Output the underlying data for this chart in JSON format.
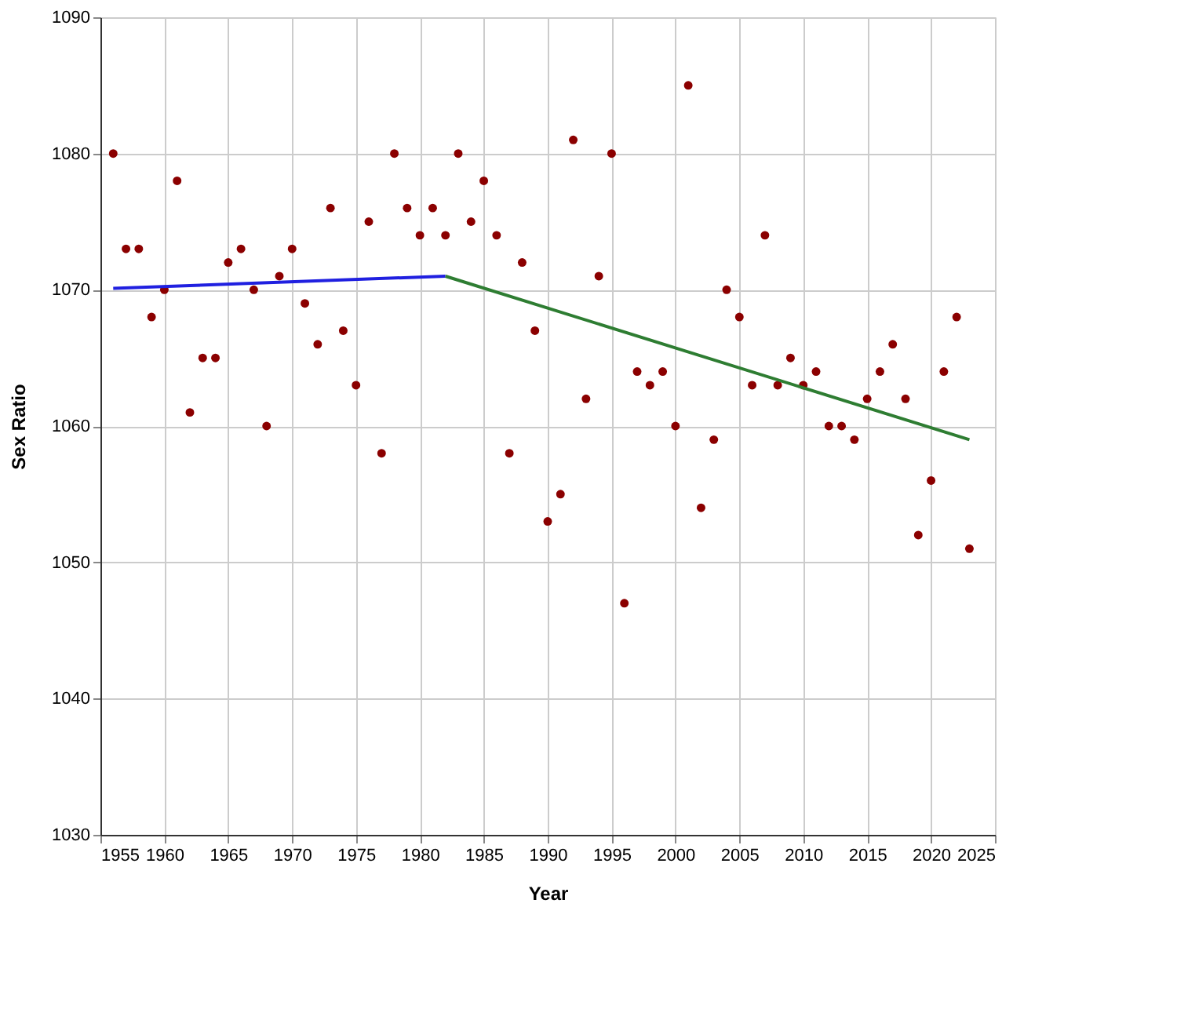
{
  "chart_data": {
    "type": "scatter",
    "xlabel": "Year",
    "ylabel": "Sex Ratio",
    "xlim": [
      1955,
      2025
    ],
    "ylim": [
      1030,
      1090
    ],
    "xticks": [
      1955,
      1960,
      1965,
      1970,
      1975,
      1980,
      1985,
      1990,
      1995,
      2000,
      2005,
      2010,
      2015,
      2020,
      2025
    ],
    "yticks": [
      1030,
      1040,
      1050,
      1060,
      1070,
      1080,
      1090
    ],
    "grid": true,
    "series": [
      {
        "marker": "circle",
        "color": "#8b0000",
        "x": [
          1956,
          1957,
          1958,
          1959,
          1960,
          1961,
          1962,
          1963,
          1964,
          1965,
          1966,
          1967,
          1968,
          1969,
          1970,
          1971,
          1972,
          1973,
          1974,
          1975,
          1976,
          1977,
          1978,
          1979,
          1980,
          1981,
          1982,
          1983,
          1984,
          1985,
          1986,
          1987,
          1988,
          1989,
          1990,
          1991,
          1992,
          1993,
          1994,
          1995,
          1996,
          1997,
          1998,
          1999,
          2000,
          2001,
          2002,
          2003,
          2004,
          2005,
          2006,
          2007,
          2008,
          2009,
          2010,
          2011,
          2012,
          2013,
          2014,
          2015,
          2016,
          2017,
          2018,
          2019,
          2020,
          2021,
          2022,
          2023
        ],
        "values": [
          1080,
          1073,
          1073,
          1068,
          1070,
          1078,
          1061,
          1065,
          1065,
          1072,
          1073,
          1070,
          1060,
          1071,
          1073,
          1069,
          1066,
          1076,
          1067,
          1063,
          1075,
          1058,
          1080,
          1076,
          1074,
          1076,
          1074,
          1080,
          1075,
          1078,
          1074,
          1058,
          1072,
          1067,
          1053,
          1055,
          1081,
          1062,
          1071,
          1080,
          1047,
          1064,
          1063,
          1064,
          1060,
          1085,
          1054,
          1059,
          1070,
          1068,
          1063,
          1074,
          1063,
          1065,
          1063,
          1064,
          1060,
          1060,
          1059,
          1062,
          1064,
          1066,
          1062,
          1052,
          1056,
          1064,
          1068,
          1051
        ]
      },
      {
        "type": "line",
        "color": "#2020e0",
        "line_style": "solid",
        "x": [
          1956,
          1982
        ],
        "values": [
          1070.1,
          1071
        ]
      },
      {
        "type": "line",
        "color": "#2e7d32",
        "line_style": "solid",
        "x": [
          1982,
          2023
        ],
        "values": [
          1071,
          1059
        ]
      }
    ]
  }
}
